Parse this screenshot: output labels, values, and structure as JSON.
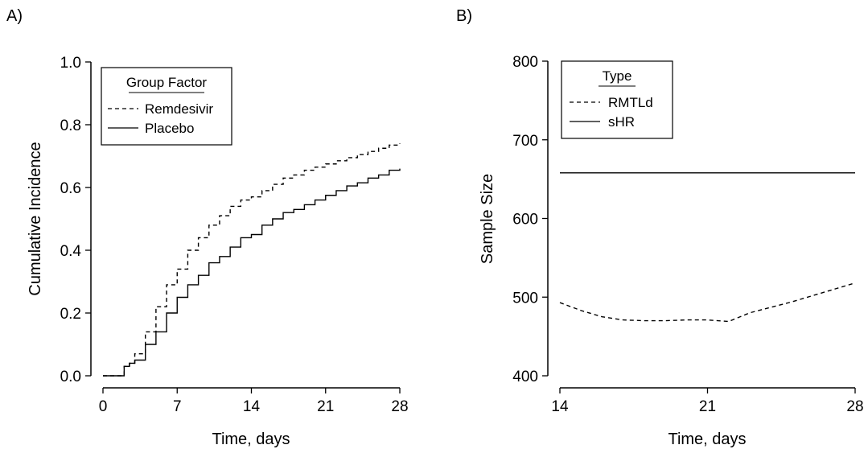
{
  "panel_labels": [
    "A)",
    "B)"
  ],
  "chart_data": [
    {
      "type": "line",
      "panel": "A)",
      "xlabel": "Time, days",
      "ylabel": "Cumulative Incidence",
      "xlim": [
        0,
        28
      ],
      "ylim": [
        0.0,
        1.0
      ],
      "xticks": [
        0,
        7,
        14,
        21,
        28
      ],
      "xtick_labels": [
        "0",
        "7",
        "14",
        "21",
        "28"
      ],
      "yticks": [
        0.0,
        0.2,
        0.4,
        0.6,
        0.8,
        1.0
      ],
      "ytick_labels": [
        "0.0",
        "0.2",
        "0.4",
        "0.6",
        "0.8",
        "1.0"
      ],
      "step": true,
      "grid": false,
      "legend_position": "top-left",
      "legend": {
        "title": "Group Factor"
      },
      "series": [
        {
          "name": "Remdesivir",
          "dash": "dashed",
          "x": [
            0,
            2,
            2.5,
            3,
            4,
            5,
            6,
            7,
            8,
            9,
            10,
            11,
            12,
            13,
            14,
            15,
            16,
            17,
            18,
            19,
            20,
            21,
            22,
            23,
            24,
            25,
            26,
            27,
            28
          ],
          "y": [
            0.0,
            0.03,
            0.04,
            0.07,
            0.14,
            0.22,
            0.29,
            0.34,
            0.4,
            0.44,
            0.48,
            0.51,
            0.54,
            0.56,
            0.57,
            0.59,
            0.61,
            0.63,
            0.64,
            0.655,
            0.665,
            0.675,
            0.685,
            0.695,
            0.705,
            0.715,
            0.725,
            0.735,
            0.74
          ]
        },
        {
          "name": "Placebo",
          "dash": "solid",
          "x": [
            0,
            2,
            2.5,
            3,
            4,
            5,
            6,
            7,
            8,
            9,
            10,
            11,
            12,
            13,
            14,
            15,
            16,
            17,
            18,
            19,
            20,
            21,
            22,
            23,
            24,
            25,
            26,
            27,
            28
          ],
          "y": [
            0.0,
            0.03,
            0.04,
            0.05,
            0.1,
            0.14,
            0.2,
            0.25,
            0.29,
            0.32,
            0.36,
            0.38,
            0.41,
            0.44,
            0.45,
            0.48,
            0.5,
            0.52,
            0.53,
            0.545,
            0.56,
            0.575,
            0.59,
            0.605,
            0.615,
            0.63,
            0.64,
            0.655,
            0.66
          ]
        }
      ]
    },
    {
      "type": "line",
      "panel": "B)",
      "xlabel": "Time, days",
      "ylabel": "Sample Size",
      "xlim": [
        14,
        28
      ],
      "ylim": [
        400,
        800
      ],
      "xticks": [
        14,
        21,
        28
      ],
      "xtick_labels": [
        "14",
        "21",
        "28"
      ],
      "yticks": [
        400,
        500,
        600,
        700,
        800
      ],
      "ytick_labels": [
        "400",
        "500",
        "600",
        "700",
        "800"
      ],
      "step": false,
      "grid": false,
      "legend_position": "top-left",
      "legend": {
        "title": "Type"
      },
      "series": [
        {
          "name": "RMTLd",
          "dash": "dashed",
          "x": [
            14,
            15,
            16,
            17,
            18,
            19,
            20,
            21,
            22,
            23,
            24,
            25,
            26,
            27,
            28
          ],
          "y": [
            493,
            483,
            475,
            471,
            470,
            470,
            471,
            471,
            469,
            480,
            487,
            494,
            502,
            510,
            518
          ]
        },
        {
          "name": "sHR",
          "dash": "solid",
          "x": [
            14,
            28
          ],
          "y": [
            658,
            658
          ]
        }
      ]
    }
  ]
}
